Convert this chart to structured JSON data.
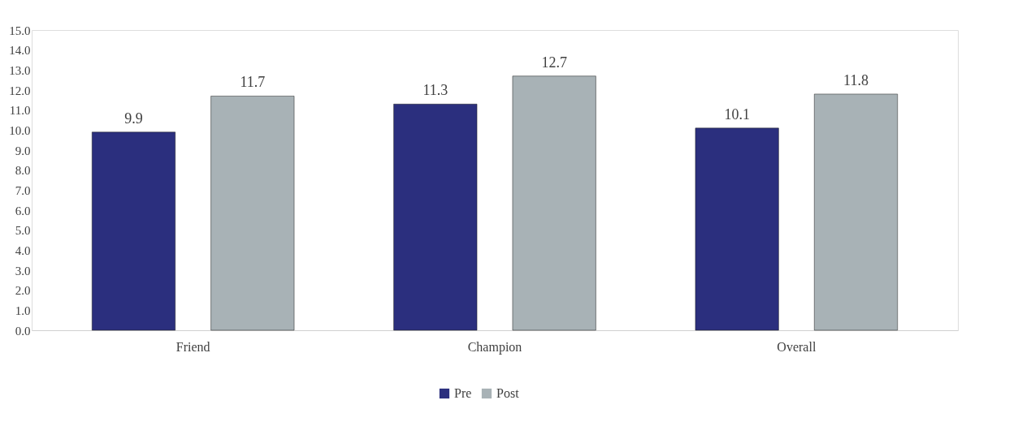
{
  "chart_data": {
    "type": "bar",
    "categories": [
      "Friend",
      "Champion",
      "Overall"
    ],
    "series": [
      {
        "name": "Pre",
        "color": "#2b2f7e",
        "values": [
          9.9,
          11.3,
          10.1
        ]
      },
      {
        "name": "Post",
        "color": "#a8b2b6",
        "values": [
          11.7,
          12.7,
          11.8
        ]
      }
    ],
    "ylim": [
      0,
      15
    ],
    "yticks": [
      {
        "value": 0,
        "label": "0.0"
      },
      {
        "value": 1,
        "label": "1.0"
      },
      {
        "value": 2,
        "label": "2.0"
      },
      {
        "value": 3,
        "label": "3.0"
      },
      {
        "value": 4,
        "label": "4.0"
      },
      {
        "value": 5,
        "label": "5.0"
      },
      {
        "value": 6,
        "label": "6.0"
      },
      {
        "value": 7,
        "label": "7.0"
      },
      {
        "value": 8,
        "label": "8.0"
      },
      {
        "value": 9,
        "label": "9.0"
      },
      {
        "value": 10,
        "label": "10.0"
      },
      {
        "value": 11,
        "label": "11.0"
      },
      {
        "value": 12,
        "label": "12.0"
      },
      {
        "value": 13,
        "label": "13.0"
      },
      {
        "value": 14,
        "label": "14.0"
      },
      {
        "value": 15,
        "label": "15.0"
      }
    ],
    "data_labels": true,
    "grid": false,
    "legend": "bottom"
  }
}
